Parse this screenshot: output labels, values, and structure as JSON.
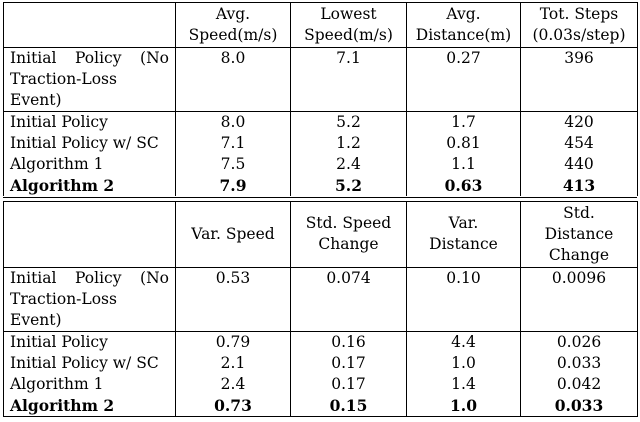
{
  "table1": {
    "header": [
      "",
      [
        "Avg.",
        "Speed(m/s)"
      ],
      [
        "Lowest",
        "Speed(m/s)"
      ],
      [
        "Avg.",
        "Distance(m)"
      ],
      [
        "Tot. Steps",
        "(0.03s/step)"
      ]
    ],
    "rows": [
      {
        "label": "Initial Policy (No Traction-Loss Event)",
        "values": [
          "8.0",
          "7.1",
          "0.27",
          "396"
        ]
      },
      {
        "label": "Initial Policy",
        "values": [
          "8.0",
          "5.2",
          "1.7",
          "420"
        ]
      },
      {
        "label": "Initial Policy w/ SC",
        "values": [
          "7.1",
          "1.2",
          "0.81",
          "454"
        ]
      },
      {
        "label": "Algorithm 1",
        "values": [
          "7.5",
          "2.4",
          "1.1",
          "440"
        ]
      },
      {
        "label": "Algorithm 2",
        "values": [
          "7.9",
          "5.2",
          "0.63",
          "413"
        ],
        "bold": true
      }
    ]
  },
  "table2": {
    "header": [
      "",
      [
        "Var. Speed"
      ],
      [
        "Std. Speed",
        "Change"
      ],
      [
        "Var.",
        "Distance"
      ],
      [
        "Std.",
        "Distance",
        "Change"
      ]
    ],
    "rows": [
      {
        "label": "Initial Policy (No Traction-Loss Event)",
        "values": [
          "0.53",
          "0.074",
          "0.10",
          "0.0096"
        ]
      },
      {
        "label": "Initial Policy",
        "values": [
          "0.79",
          "0.16",
          "4.4",
          "0.026"
        ]
      },
      {
        "label": "Initial Policy w/ SC",
        "values": [
          "2.1",
          "0.17",
          "1.0",
          "0.033"
        ]
      },
      {
        "label": "Algorithm 1",
        "values": [
          "2.4",
          "0.17",
          "1.4",
          "0.042"
        ]
      },
      {
        "label": "Algorithm 2",
        "values": [
          "0.73",
          "0.15",
          "1.0",
          "0.033"
        ],
        "bold": true
      }
    ]
  }
}
